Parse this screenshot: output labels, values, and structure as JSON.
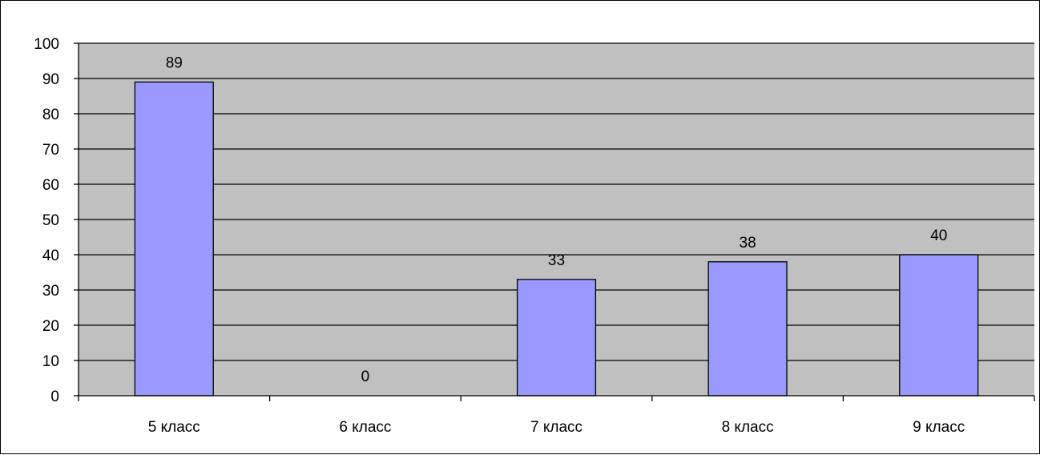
{
  "chart_data": {
    "type": "bar",
    "categories": [
      "5 класс",
      "6 класс",
      "7 класс",
      "8 класс",
      "9 класс"
    ],
    "values": [
      89,
      0,
      33,
      38,
      40
    ],
    "data_labels": [
      "89",
      "0",
      "33",
      "38",
      "40"
    ],
    "title": "",
    "xlabel": "",
    "ylabel": "",
    "ylim": [
      0,
      100
    ],
    "yticks": [
      "0",
      "10",
      "20",
      "30",
      "40",
      "50",
      "60",
      "70",
      "80",
      "90",
      "100"
    ],
    "grid": true,
    "legend": "none",
    "colors": {
      "plot_background": "#c0c0c0",
      "bar_fill": "#9999ff",
      "bar_stroke": "#000000",
      "gridline": "#000000"
    }
  }
}
